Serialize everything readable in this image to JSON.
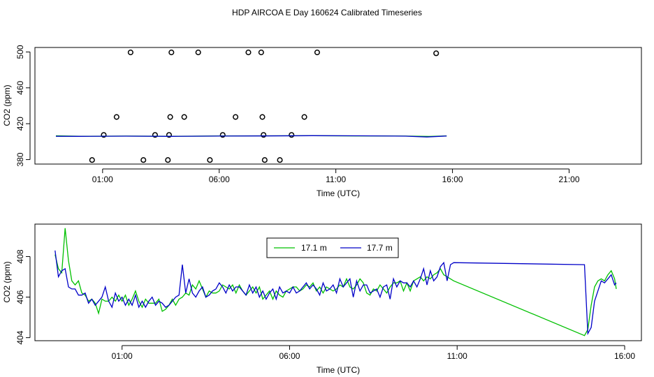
{
  "page_title": "HDP AIRCOA E  Day 160624  Calibrated Timeseries",
  "chart_data": [
    {
      "type": "scatter",
      "xlabel": "Time (UTC)",
      "ylabel": "CO2 (ppm)",
      "x_tick_labels": [
        "01:00",
        "06:00",
        "11:00",
        "16:00",
        "21:00"
      ],
      "x_ticks_hours": [
        1,
        6,
        11,
        16,
        21
      ],
      "xlim_hours": [
        -1.9,
        24.1
      ],
      "y_tick_labels": [
        "380",
        "420",
        "460",
        "500"
      ],
      "y_ticks": [
        380,
        420,
        460,
        500
      ],
      "ylim": [
        375,
        505
      ],
      "points_color": "#000000",
      "calibration_points": [
        {
          "t": 0.55,
          "co2": 379.5
        },
        {
          "t": 1.05,
          "co2": 407.5
        },
        {
          "t": 1.6,
          "co2": 427.5
        },
        {
          "t": 2.2,
          "co2": 499.5
        },
        {
          "t": 2.75,
          "co2": 379.5
        },
        {
          "t": 3.25,
          "co2": 407.5
        },
        {
          "t": 3.8,
          "co2": 379.5
        },
        {
          "t": 3.85,
          "co2": 407.5
        },
        {
          "t": 3.9,
          "co2": 427.5
        },
        {
          "t": 3.95,
          "co2": 499.5
        },
        {
          "t": 4.5,
          "co2": 427.5
        },
        {
          "t": 5.1,
          "co2": 499.5
        },
        {
          "t": 5.6,
          "co2": 379.5
        },
        {
          "t": 6.15,
          "co2": 407.5
        },
        {
          "t": 6.7,
          "co2": 427.5
        },
        {
          "t": 7.25,
          "co2": 499.5
        },
        {
          "t": 7.8,
          "co2": 499.5
        },
        {
          "t": 7.85,
          "co2": 427.5
        },
        {
          "t": 7.9,
          "co2": 407.5
        },
        {
          "t": 7.95,
          "co2": 379.5
        },
        {
          "t": 8.6,
          "co2": 379.5
        },
        {
          "t": 9.1,
          "co2": 407.5
        },
        {
          "t": 9.65,
          "co2": 427.5
        },
        {
          "t": 10.2,
          "co2": 499.5
        },
        {
          "t": 15.3,
          "co2": 498.5
        }
      ],
      "series": [
        {
          "name": "17.1 m",
          "color": "#00c000",
          "t": [
            -1.0,
            0.0,
            2.0,
            4.0,
            6.0,
            8.0,
            10.0,
            12.0,
            14.0,
            15.0,
            15.75
          ],
          "co2": [
            406.5,
            406.0,
            406.2,
            406.0,
            406.3,
            406.5,
            406.6,
            406.4,
            406.2,
            405.8,
            406.4
          ]
        },
        {
          "name": "17.7 m",
          "color": "#0000c8",
          "t": [
            -1.0,
            0.0,
            2.0,
            4.0,
            6.0,
            8.0,
            10.0,
            12.0,
            14.0,
            14.9,
            15.75
          ],
          "co2": [
            406.0,
            405.9,
            406.1,
            405.9,
            406.2,
            406.4,
            406.7,
            406.5,
            406.1,
            405.2,
            406.3
          ]
        }
      ]
    },
    {
      "type": "line",
      "xlabel": "Time (UTC)",
      "ylabel": "CO2 (ppm)",
      "x_tick_labels": [
        "01:00",
        "06:00",
        "11:00",
        "16:00"
      ],
      "x_ticks_hours": [
        1,
        6,
        11,
        16
      ],
      "xlim_hours": [
        -1.6,
        16.5
      ],
      "y_tick_labels": [
        "404",
        "406",
        "408"
      ],
      "y_ticks": [
        404,
        406,
        408
      ],
      "ylim": [
        403.85,
        409.6
      ],
      "legend_position": "top-center",
      "series": [
        {
          "name": "17.1 m",
          "color": "#00c000",
          "t": [
            -1.0,
            -0.9,
            -0.8,
            -0.75,
            -0.7,
            -0.6,
            -0.5,
            -0.4,
            -0.3,
            -0.2,
            -0.1,
            0.0,
            0.1,
            0.2,
            0.3,
            0.4,
            0.5,
            0.6,
            0.7,
            0.8,
            0.9,
            1.0,
            1.1,
            1.2,
            1.3,
            1.4,
            1.5,
            1.6,
            1.7,
            1.8,
            1.9,
            2.0,
            2.1,
            2.2,
            2.3,
            2.4,
            2.5,
            2.6,
            2.7,
            2.8,
            2.9,
            3.0,
            3.1,
            3.2,
            3.3,
            3.4,
            3.5,
            3.6,
            3.7,
            3.8,
            3.9,
            4.0,
            4.1,
            4.2,
            4.3,
            4.4,
            4.5,
            4.6,
            4.7,
            4.8,
            4.9,
            5.0,
            5.1,
            5.2,
            5.3,
            5.4,
            5.5,
            5.6,
            5.7,
            5.8,
            5.9,
            6.0,
            6.1,
            6.2,
            6.3,
            6.4,
            6.5,
            6.6,
            6.7,
            6.8,
            6.9,
            7.0,
            7.1,
            7.2,
            7.3,
            7.4,
            7.5,
            7.6,
            7.7,
            7.8,
            7.9,
            8.0,
            8.1,
            8.2,
            8.3,
            8.4,
            8.5,
            8.6,
            8.7,
            8.8,
            8.9,
            9.0,
            9.1,
            9.2,
            9.3,
            9.4,
            9.5,
            9.6,
            9.7,
            9.8,
            9.9,
            10.0,
            10.1,
            10.2,
            10.3,
            10.4,
            10.5,
            10.6,
            10.7,
            10.8,
            10.9,
            14.8,
            14.9,
            15.0,
            15.1,
            15.2,
            15.3,
            15.4,
            15.5,
            15.6,
            15.7,
            15.75
          ],
          "co2": [
            408.1,
            407.4,
            407.2,
            408.3,
            409.4,
            407.8,
            406.8,
            406.6,
            406.8,
            406.2,
            406.1,
            405.8,
            405.9,
            405.7,
            405.2,
            405.9,
            405.8,
            405.8,
            406.0,
            405.8,
            406.1,
            405.8,
            406.1,
            405.6,
            405.9,
            406.3,
            405.8,
            405.5,
            405.9,
            405.7,
            405.7,
            405.7,
            405.9,
            405.3,
            405.4,
            405.6,
            405.9,
            405.6,
            405.9,
            406.0,
            406.2,
            406.1,
            406.6,
            406.4,
            406.8,
            406.4,
            406.0,
            406.3,
            406.2,
            406.2,
            406.3,
            406.6,
            406.5,
            406.4,
            406.6,
            406.2,
            406.6,
            406.3,
            406.1,
            406.3,
            406.5,
            406.2,
            406.5,
            405.9,
            406.1,
            406.3,
            405.9,
            406.3,
            406.1,
            406.0,
            406.3,
            406.4,
            406.5,
            406.5,
            406.3,
            406.4,
            406.6,
            406.5,
            406.7,
            406.3,
            406.5,
            406.2,
            406.5,
            406.4,
            406.3,
            406.4,
            406.6,
            406.5,
            406.9,
            406.5,
            406.4,
            406.6,
            406.9,
            406.7,
            406.2,
            406.1,
            406.4,
            406.3,
            406.6,
            406.4,
            406.2,
            406.5,
            406.7,
            406.7,
            406.8,
            406.3,
            406.7,
            406.3,
            406.8,
            406.9,
            407.0,
            406.8,
            407.0,
            406.9,
            407.1,
            407.2,
            407.4,
            407.1,
            407.0,
            406.9,
            406.8,
            404.1,
            404.4,
            405.6,
            406.5,
            406.8,
            406.9,
            406.8,
            407.1,
            407.3,
            406.9,
            406.4
          ]
        },
        {
          "name": "17.7 m",
          "color": "#0000c8",
          "t": [
            -1.0,
            -0.9,
            -0.8,
            -0.7,
            -0.6,
            -0.5,
            -0.4,
            -0.3,
            -0.2,
            -0.1,
            0.0,
            0.1,
            0.2,
            0.3,
            0.4,
            0.5,
            0.6,
            0.7,
            0.8,
            0.9,
            1.0,
            1.1,
            1.2,
            1.3,
            1.4,
            1.5,
            1.6,
            1.7,
            1.8,
            1.9,
            2.0,
            2.1,
            2.2,
            2.3,
            2.4,
            2.5,
            2.6,
            2.7,
            2.8,
            2.9,
            3.0,
            3.1,
            3.2,
            3.3,
            3.4,
            3.5,
            3.6,
            3.7,
            3.8,
            3.9,
            4.0,
            4.1,
            4.2,
            4.3,
            4.4,
            4.5,
            4.6,
            4.7,
            4.8,
            4.9,
            5.0,
            5.1,
            5.2,
            5.3,
            5.4,
            5.5,
            5.6,
            5.7,
            5.8,
            5.9,
            6.0,
            6.1,
            6.2,
            6.3,
            6.4,
            6.5,
            6.6,
            6.7,
            6.8,
            6.9,
            7.0,
            7.1,
            7.2,
            7.3,
            7.4,
            7.5,
            7.6,
            7.7,
            7.8,
            7.9,
            8.0,
            8.1,
            8.2,
            8.3,
            8.4,
            8.5,
            8.6,
            8.7,
            8.8,
            8.9,
            9.0,
            9.1,
            9.2,
            9.3,
            9.4,
            9.5,
            9.6,
            9.7,
            9.8,
            9.9,
            10.0,
            10.1,
            10.2,
            10.3,
            10.4,
            10.5,
            10.6,
            10.7,
            10.8,
            10.9,
            14.8,
            14.9,
            15.0,
            15.1,
            15.2,
            15.3,
            15.4,
            15.5,
            15.6,
            15.7,
            15.75
          ],
          "co2": [
            408.3,
            407.0,
            407.3,
            407.4,
            406.5,
            406.4,
            406.4,
            406.1,
            406.1,
            406.2,
            405.7,
            405.9,
            405.6,
            405.8,
            406.0,
            406.5,
            405.8,
            405.5,
            406.2,
            405.8,
            406.0,
            405.6,
            405.9,
            405.6,
            406.1,
            405.5,
            405.8,
            405.5,
            405.8,
            406.0,
            405.6,
            405.8,
            405.7,
            405.5,
            405.6,
            405.8,
            406.0,
            406.1,
            407.6,
            406.2,
            406.9,
            406.2,
            406.0,
            406.3,
            406.5,
            406.0,
            406.1,
            406.3,
            406.4,
            406.7,
            406.5,
            406.2,
            406.6,
            406.3,
            406.5,
            406.5,
            406.3,
            406.1,
            406.6,
            406.2,
            406.5,
            406.0,
            406.3,
            405.9,
            406.2,
            406.4,
            405.9,
            406.5,
            406.2,
            406.3,
            406.2,
            406.5,
            406.2,
            406.3,
            406.5,
            406.7,
            406.4,
            406.6,
            406.4,
            406.1,
            406.7,
            406.3,
            406.4,
            406.6,
            406.2,
            406.9,
            406.5,
            406.7,
            406.9,
            406.0,
            406.8,
            406.3,
            406.6,
            406.6,
            406.2,
            406.3,
            406.4,
            406.0,
            406.5,
            406.6,
            405.9,
            406.9,
            406.5,
            406.8,
            406.7,
            406.7,
            406.5,
            406.8,
            406.5,
            406.9,
            407.4,
            406.6,
            407.3,
            406.8,
            407.0,
            407.5,
            407.7,
            406.8,
            407.6,
            407.7,
            407.6,
            404.2,
            404.5,
            405.8,
            406.3,
            406.8,
            406.7,
            406.9,
            407.1,
            406.6,
            406.7,
            406.4
          ]
        }
      ]
    }
  ]
}
